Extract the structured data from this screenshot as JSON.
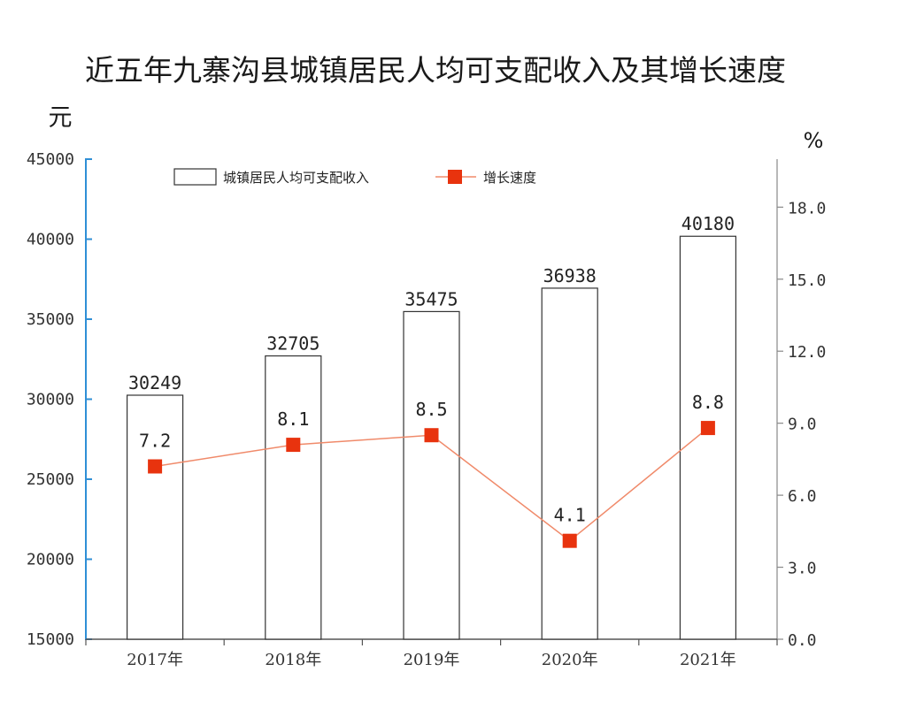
{
  "chart_data": {
    "type": "bar",
    "title": "近五年九寨沟县城镇居民人均可支配收入及其增长速度",
    "left_unit": "元",
    "right_unit": "%",
    "categories": [
      "2017年",
      "2018年",
      "2019年",
      "2020年",
      "2021年"
    ],
    "series": [
      {
        "name": "城镇居民人均可支配收入",
        "type": "bar",
        "axis": "left",
        "values": [
          30249,
          32705,
          35475,
          36938,
          40180
        ],
        "labels": [
          "30249",
          "32705",
          "35475",
          "36938",
          "40180"
        ]
      },
      {
        "name": "增长速度",
        "type": "line",
        "axis": "right",
        "values": [
          7.2,
          8.1,
          8.5,
          4.1,
          8.8
        ],
        "labels": [
          "7.2",
          "8.1",
          "8.5",
          "4.1",
          "8.8"
        ]
      }
    ],
    "left_axis": {
      "range": [
        15000,
        45000
      ],
      "ticks": [
        15000,
        20000,
        25000,
        30000,
        35000,
        40000,
        45000
      ],
      "tick_labels": [
        "15000",
        "20000",
        "25000",
        "30000",
        "35000",
        "40000",
        "45000"
      ]
    },
    "right_axis": {
      "range": [
        0,
        20
      ],
      "ticks": [
        0,
        3,
        6,
        9,
        12,
        15,
        18
      ],
      "tick_labels": [
        "0.0",
        "3.0",
        "6.0",
        "9.0",
        "12.0",
        "15.0",
        "18.0"
      ]
    },
    "legend_position": "top",
    "grid": false,
    "colors": {
      "bar_fill": "#ffffff",
      "bar_stroke": "#333333",
      "line": "#f08a6a",
      "marker": "#e8330e",
      "left_axis": "#2f8fd6",
      "right_axis": "#888888"
    }
  }
}
